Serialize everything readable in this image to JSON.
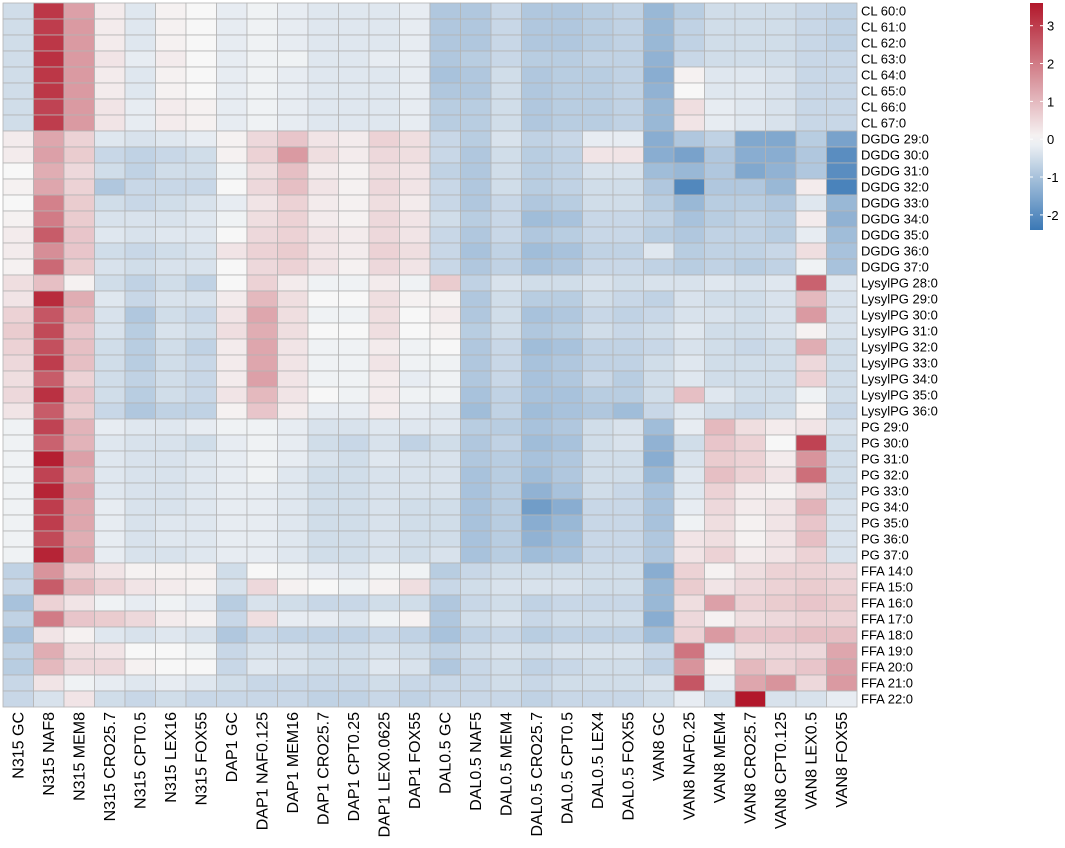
{
  "chart_data": {
    "type": "heatmap",
    "columns": [
      "N315 GC",
      "N315 NAF8",
      "N315 MEM8",
      "N315 CRO25.7",
      "N315 CPT0.5",
      "N315 LEX16",
      "N315 FOX55",
      "DAP1 GC",
      "DAP1 NAF0.125",
      "DAP1 MEM16",
      "DAP1 CRO25.7",
      "DAP1 CPT0.25",
      "DAP1 LEX0.0625",
      "DAP1 FOX55",
      "DAL0.5 GC",
      "DAL0.5 NAF5",
      "DAL0.5 MEM4",
      "DAL0.5 CRO25.7",
      "DAL0.5 CPT0.5",
      "DAL0.5 LEX4",
      "DAL0.5 FOX55",
      "VAN8 GC",
      "VAN8 NAF0.25",
      "VAN8 MEM4",
      "VAN8 CRO25.7",
      "VAN8 CPT0.125",
      "VAN8 LEX0.5",
      "VAN8 FOX55"
    ],
    "rows": [
      "CL 60:0",
      "CL 61:0",
      "CL 62:0",
      "CL 63:0",
      "CL 64:0",
      "CL 65:0",
      "CL 66:0",
      "CL 67:0",
      "DGDG 29:0",
      "DGDG 30:0",
      "DGDG 31:0",
      "DGDG 32:0",
      "DGDG 33:0",
      "DGDG 34:0",
      "DGDG 35:0",
      "DGDG 36:0",
      "DGDG 37:0",
      "LysylPG 28:0",
      "LysylPG 29:0",
      "LysylPG 30:0",
      "LysylPG 31:0",
      "LysylPG 32:0",
      "LysylPG 33:0",
      "LysylPG 34:0",
      "LysylPG 35:0",
      "LysylPG 36:0",
      "PG 29:0",
      "PG 30:0",
      "PG 31:0",
      "PG 32:0",
      "PG 33:0",
      "PG 34:0",
      "PG 35:0",
      "PG 36:0",
      "PG 37:0",
      "FFA 14:0",
      "FFA 15:0",
      "FFA 16:0",
      "FFA 17:0",
      "FFA 18:0",
      "FFA 19:0",
      "FFA 20:0",
      "FFA 21:0",
      "FFA 22:0"
    ],
    "values": [
      [
        -0.5,
        3.1,
        1.4,
        0.2,
        -0.3,
        0.1,
        0.0,
        -0.2,
        -0.1,
        -0.2,
        -0.3,
        -0.3,
        -0.3,
        -0.2,
        -0.9,
        -0.9,
        -0.6,
        -0.9,
        -0.9,
        -0.8,
        -0.7,
        -1.2,
        -0.8,
        -0.5,
        -0.5,
        -0.5,
        -0.6,
        -0.7
      ],
      [
        -0.5,
        3.0,
        1.5,
        0.2,
        -0.3,
        0.1,
        0.0,
        -0.2,
        -0.1,
        -0.2,
        -0.3,
        -0.3,
        -0.3,
        -0.2,
        -0.9,
        -0.9,
        -0.6,
        -0.9,
        -0.9,
        -0.8,
        -0.7,
        -1.2,
        -0.7,
        -0.5,
        -0.5,
        -0.5,
        -0.6,
        -0.7
      ],
      [
        -0.5,
        3.1,
        1.5,
        0.2,
        -0.3,
        0.1,
        0.0,
        -0.2,
        -0.1,
        -0.2,
        -0.3,
        -0.3,
        -0.3,
        -0.2,
        -0.9,
        -0.9,
        -0.6,
        -0.9,
        -0.9,
        -0.8,
        -0.7,
        -1.2,
        -0.7,
        -0.5,
        -0.5,
        -0.5,
        -0.6,
        -0.7
      ],
      [
        -0.5,
        3.2,
        1.5,
        0.3,
        -0.2,
        0.2,
        0.0,
        -0.2,
        -0.1,
        -0.1,
        -0.3,
        -0.3,
        -0.2,
        -0.2,
        -0.9,
        -0.8,
        -0.6,
        -0.8,
        -0.8,
        -0.7,
        -0.7,
        -1.3,
        -0.6,
        -0.5,
        -0.5,
        -0.5,
        -0.6,
        -0.6
      ],
      [
        -0.5,
        3.1,
        1.5,
        0.2,
        -0.3,
        0.1,
        0.0,
        -0.2,
        -0.1,
        -0.2,
        -0.3,
        -0.3,
        -0.3,
        -0.2,
        -1.0,
        -0.9,
        -0.5,
        -0.9,
        -0.8,
        -0.8,
        -0.7,
        -1.4,
        0.1,
        -0.3,
        -0.3,
        -0.4,
        -0.6,
        -0.6
      ],
      [
        -0.5,
        3.1,
        1.5,
        0.2,
        -0.3,
        0.1,
        0.0,
        -0.2,
        -0.1,
        -0.2,
        -0.3,
        -0.3,
        -0.3,
        -0.2,
        -0.9,
        -0.9,
        -0.5,
        -0.9,
        -0.8,
        -0.8,
        -0.7,
        -1.3,
        0.0,
        -0.3,
        -0.3,
        -0.4,
        -0.6,
        -0.6
      ],
      [
        -0.5,
        2.9,
        1.5,
        0.3,
        -0.2,
        0.2,
        0.1,
        -0.2,
        -0.1,
        -0.2,
        -0.3,
        -0.3,
        -0.3,
        -0.2,
        -0.8,
        -0.8,
        -0.5,
        -0.9,
        -0.8,
        -0.8,
        -0.7,
        -1.2,
        0.4,
        -0.2,
        -0.3,
        -0.4,
        -0.6,
        -0.6
      ],
      [
        -0.5,
        3.0,
        1.5,
        0.3,
        -0.2,
        0.2,
        0.1,
        -0.2,
        -0.1,
        -0.2,
        -0.3,
        -0.3,
        -0.3,
        -0.2,
        -0.8,
        -0.8,
        -0.5,
        -0.9,
        -0.8,
        -0.8,
        -0.7,
        -1.2,
        0.3,
        -0.2,
        -0.3,
        -0.4,
        -0.6,
        -0.6
      ],
      [
        0.2,
        1.3,
        0.6,
        -0.3,
        -0.4,
        -0.3,
        -0.2,
        0.1,
        0.5,
        0.8,
        0.3,
        0.2,
        0.6,
        0.4,
        -0.6,
        -0.8,
        -0.4,
        -0.7,
        -0.6,
        -0.2,
        -0.2,
        -1.4,
        -0.9,
        -0.7,
        -1.5,
        -1.5,
        -0.8,
        -1.6
      ],
      [
        0.2,
        1.4,
        0.7,
        -0.6,
        -0.7,
        -0.6,
        -0.5,
        0.1,
        0.6,
        1.5,
        0.4,
        0.2,
        0.5,
        0.4,
        -0.6,
        -0.9,
        -0.5,
        -0.8,
        -0.7,
        0.3,
        0.3,
        -1.4,
        -1.6,
        -0.9,
        -1.4,
        -1.4,
        -0.9,
        -2.0
      ],
      [
        0.0,
        1.2,
        0.5,
        -0.5,
        -0.7,
        -0.5,
        -0.5,
        -0.1,
        0.4,
        0.9,
        0.2,
        0.1,
        0.4,
        0.3,
        -0.7,
        -0.9,
        -0.5,
        -0.8,
        -0.7,
        -0.4,
        -0.4,
        -1.1,
        -1.2,
        -0.9,
        -1.5,
        -1.3,
        -0.9,
        -2.0
      ],
      [
        0.1,
        1.3,
        0.6,
        -0.9,
        -0.6,
        -0.6,
        -0.6,
        0.0,
        0.5,
        0.9,
        0.3,
        0.1,
        0.5,
        0.3,
        -0.6,
        -0.9,
        -0.5,
        -0.8,
        -0.7,
        -0.5,
        -0.5,
        -0.9,
        -2.1,
        -0.9,
        -0.9,
        -1.2,
        0.2,
        -2.2
      ],
      [
        0.0,
        1.9,
        0.7,
        -0.5,
        -0.6,
        -0.5,
        -0.4,
        -0.2,
        0.3,
        0.6,
        0.2,
        0.1,
        0.4,
        0.2,
        -0.6,
        -0.9,
        -0.6,
        -0.9,
        -0.8,
        -0.5,
        -0.5,
        -0.8,
        -1.2,
        -0.8,
        -0.8,
        -0.9,
        -0.3,
        -1.2
      ],
      [
        0.1,
        2.0,
        0.7,
        -0.4,
        -0.4,
        -0.4,
        -0.3,
        -0.1,
        0.4,
        0.6,
        0.2,
        0.1,
        0.5,
        0.3,
        -0.5,
        -0.8,
        -0.6,
        -1.1,
        -1.0,
        -0.6,
        -0.6,
        -0.7,
        -1.0,
        -0.8,
        -0.7,
        -0.8,
        0.2,
        -1.3
      ],
      [
        0.2,
        2.5,
        0.8,
        -0.3,
        -0.4,
        -0.3,
        -0.3,
        0.0,
        0.5,
        0.6,
        0.3,
        0.2,
        0.5,
        0.3,
        -0.6,
        -0.9,
        -0.6,
        -0.9,
        -0.8,
        -0.6,
        -0.6,
        -0.8,
        -0.9,
        -0.7,
        -0.7,
        -0.8,
        -0.2,
        -1.1
      ],
      [
        0.2,
        1.7,
        0.8,
        -0.5,
        -0.6,
        -0.5,
        -0.4,
        0.3,
        0.6,
        0.7,
        0.3,
        0.2,
        0.6,
        0.4,
        -0.6,
        -1.0,
        -0.7,
        -1.1,
        -1.0,
        -0.7,
        -0.7,
        -0.3,
        -0.8,
        -0.7,
        -0.7,
        -0.6,
        0.4,
        -1.0
      ],
      [
        0.1,
        2.3,
        0.7,
        -0.4,
        -0.5,
        -0.4,
        -0.4,
        0.0,
        0.5,
        0.6,
        0.3,
        0.1,
        0.5,
        0.3,
        -0.6,
        -0.9,
        -0.7,
        -1.0,
        -0.9,
        -0.6,
        -0.6,
        -0.7,
        -0.8,
        -0.7,
        -0.8,
        -0.7,
        -0.1,
        -1.0
      ],
      [
        0.4,
        0.9,
        0.1,
        -0.5,
        -0.7,
        -0.5,
        -0.7,
        0.0,
        0.6,
        0.2,
        -0.1,
        -0.1,
        0.2,
        -0.1,
        0.7,
        -0.7,
        -0.4,
        -0.5,
        -0.5,
        -0.4,
        -0.5,
        -0.4,
        -0.4,
        -0.3,
        -0.4,
        -0.3,
        2.4,
        -0.3
      ],
      [
        0.3,
        3.3,
        1.2,
        -0.3,
        -0.6,
        -0.4,
        -0.4,
        0.2,
        1.0,
        0.4,
        0.0,
        0.0,
        0.4,
        0.1,
        0.1,
        -0.9,
        -0.5,
        -0.8,
        -0.8,
        -0.5,
        -0.6,
        -0.7,
        -0.4,
        -0.5,
        -0.5,
        -0.4,
        1.0,
        -0.4
      ],
      [
        0.6,
        2.6,
        1.0,
        -0.4,
        -0.9,
        -0.5,
        -0.6,
        0.3,
        1.3,
        0.4,
        -0.1,
        -0.1,
        0.4,
        0.0,
        0.2,
        -0.9,
        -0.5,
        -1.0,
        -0.9,
        -0.6,
        -0.7,
        -0.6,
        -0.4,
        -0.4,
        -0.5,
        -0.4,
        1.5,
        -0.4
      ],
      [
        0.7,
        2.8,
        0.8,
        -0.4,
        -0.8,
        -0.4,
        -0.5,
        0.4,
        1.2,
        0.4,
        0.0,
        0.0,
        0.4,
        0.0,
        0.1,
        -0.8,
        -0.5,
        -0.9,
        -0.8,
        -0.5,
        -0.6,
        -0.5,
        -0.3,
        -0.5,
        -0.5,
        -0.4,
        0.1,
        -0.4
      ],
      [
        0.6,
        2.7,
        0.9,
        -0.5,
        -0.8,
        -0.5,
        -0.7,
        0.2,
        1.3,
        0.3,
        -0.1,
        -0.1,
        0.2,
        -0.1,
        0.0,
        -0.9,
        -0.6,
        -1.1,
        -1.0,
        -0.7,
        -0.7,
        -0.6,
        -0.4,
        -0.5,
        -0.6,
        -0.5,
        1.2,
        -0.5
      ],
      [
        0.5,
        3.0,
        0.9,
        -0.5,
        -0.8,
        -0.5,
        -0.6,
        0.2,
        1.3,
        0.3,
        -0.1,
        -0.1,
        0.3,
        -0.1,
        -0.1,
        -0.9,
        -0.6,
        -1.0,
        -0.9,
        -0.7,
        -0.7,
        -0.5,
        -0.3,
        -0.5,
        -0.5,
        -0.5,
        0.5,
        -0.5
      ],
      [
        0.4,
        2.5,
        0.6,
        -0.5,
        -0.7,
        -0.5,
        -0.6,
        0.2,
        1.4,
        0.3,
        -0.1,
        -0.1,
        0.2,
        -0.2,
        -0.1,
        -0.9,
        -0.6,
        -1.0,
        -0.9,
        -0.6,
        -0.8,
        -0.5,
        -0.3,
        -0.5,
        -0.5,
        -0.5,
        0.6,
        -0.5
      ],
      [
        0.5,
        3.2,
        0.8,
        -0.5,
        -0.8,
        -0.5,
        -0.6,
        0.3,
        1.0,
        0.3,
        0.0,
        -0.1,
        0.2,
        -0.1,
        -0.1,
        -1.0,
        -0.7,
        -1.0,
        -1.0,
        -0.8,
        -0.8,
        -0.5,
        0.9,
        -0.3,
        -0.5,
        -0.5,
        -0.1,
        -0.5
      ],
      [
        0.3,
        2.5,
        0.7,
        -0.6,
        -0.9,
        -0.7,
        -0.7,
        0.1,
        0.8,
        0.2,
        -0.2,
        -0.2,
        0.2,
        -0.2,
        -0.3,
        -1.1,
        -0.7,
        -1.1,
        -1.0,
        -0.9,
        -1.1,
        -0.6,
        -0.3,
        -0.5,
        -0.6,
        -0.5,
        0.1,
        -0.6
      ],
      [
        -0.1,
        2.9,
        1.1,
        -0.2,
        -0.3,
        -0.3,
        -0.2,
        -0.1,
        -0.1,
        -0.2,
        -0.4,
        -0.4,
        -0.3,
        -0.3,
        -0.3,
        -0.8,
        -0.8,
        -1.0,
        -0.9,
        -0.5,
        -0.4,
        -1.1,
        -0.2,
        1.0,
        0.4,
        0.2,
        0.3,
        -0.4
      ],
      [
        -0.1,
        2.4,
        1.1,
        -0.3,
        -0.4,
        -0.4,
        -0.5,
        -0.2,
        -0.1,
        -0.2,
        -0.5,
        -0.6,
        -0.4,
        -0.7,
        -0.5,
        -0.9,
        -0.7,
        -1.1,
        -1.0,
        -0.5,
        -0.4,
        -1.3,
        -0.5,
        0.8,
        0.6,
        0.0,
        2.9,
        -0.5
      ],
      [
        -0.1,
        3.5,
        1.4,
        -0.3,
        -0.4,
        -0.4,
        -0.3,
        -0.2,
        -0.1,
        -0.2,
        -0.4,
        -0.5,
        -0.3,
        -0.4,
        -0.4,
        -0.9,
        -0.8,
        -1.0,
        -0.9,
        -0.5,
        -0.5,
        -1.4,
        -0.4,
        0.7,
        0.6,
        0.2,
        1.6,
        -0.5
      ],
      [
        -0.1,
        2.9,
        1.2,
        -0.3,
        -0.4,
        -0.4,
        -0.3,
        -0.2,
        -0.1,
        -0.3,
        -0.5,
        -0.5,
        -0.4,
        -0.4,
        -0.4,
        -1.0,
        -0.8,
        -1.1,
        -0.9,
        -0.5,
        -0.5,
        -1.2,
        -0.3,
        0.9,
        0.6,
        0.3,
        2.2,
        -0.5
      ],
      [
        -0.1,
        3.4,
        1.4,
        -0.3,
        -0.4,
        -0.4,
        -0.3,
        -0.2,
        -0.2,
        -0.3,
        -0.5,
        -0.5,
        -0.4,
        -0.4,
        -0.4,
        -1.0,
        -0.8,
        -1.3,
        -1.0,
        -0.5,
        -0.6,
        -1.0,
        -0.3,
        0.6,
        0.2,
        0.1,
        0.5,
        -0.5
      ],
      [
        -0.1,
        3.0,
        1.3,
        -0.2,
        -0.4,
        -0.4,
        -0.3,
        -0.2,
        -0.2,
        -0.3,
        -0.5,
        -0.5,
        -0.4,
        -0.5,
        -0.5,
        -1.0,
        -0.8,
        -1.7,
        -1.4,
        -0.6,
        -0.6,
        -1.0,
        -0.2,
        0.5,
        0.2,
        0.3,
        1.1,
        -0.4
      ],
      [
        -0.1,
        3.0,
        1.3,
        -0.2,
        -0.4,
        -0.3,
        -0.3,
        -0.2,
        -0.2,
        -0.3,
        -0.5,
        -0.5,
        -0.4,
        -0.5,
        -0.5,
        -1.0,
        -0.8,
        -1.4,
        -1.2,
        -0.6,
        -0.6,
        -1.0,
        -0.1,
        0.4,
        0.1,
        0.3,
        0.8,
        -0.4
      ],
      [
        -0.1,
        2.8,
        1.2,
        -0.2,
        -0.4,
        -0.3,
        -0.3,
        -0.2,
        -0.2,
        -0.3,
        -0.5,
        -0.5,
        -0.4,
        -0.5,
        -0.5,
        -1.0,
        -0.8,
        -1.3,
        -1.1,
        -0.6,
        -0.6,
        -0.9,
        0.3,
        0.4,
        0.1,
        0.3,
        0.9,
        -0.4
      ],
      [
        -0.1,
        3.4,
        1.3,
        -0.2,
        -0.4,
        -0.4,
        -0.3,
        -0.2,
        -0.2,
        -0.3,
        -0.5,
        -0.5,
        -0.4,
        -0.5,
        -0.4,
        -1.0,
        -0.8,
        -1.1,
        -1.0,
        -0.6,
        -0.6,
        -0.9,
        0.3,
        0.6,
        0.2,
        0.3,
        0.6,
        -0.4
      ],
      [
        -0.7,
        1.6,
        0.6,
        0.3,
        0.1,
        0.1,
        0.1,
        -0.5,
        0.0,
        -0.1,
        -0.2,
        -0.3,
        -0.1,
        -0.1,
        -0.8,
        -0.6,
        -0.5,
        -0.5,
        -0.5,
        -0.5,
        -0.5,
        -1.4,
        0.6,
        0.1,
        0.4,
        0.6,
        0.6,
        0.5
      ],
      [
        -0.6,
        2.5,
        1.0,
        0.6,
        0.3,
        0.2,
        0.1,
        -0.4,
        0.5,
        0.1,
        0.0,
        -0.1,
        0.1,
        0.4,
        -0.6,
        -0.5,
        -0.4,
        -0.4,
        -0.4,
        -0.5,
        -0.5,
        -1.2,
        0.7,
        0.3,
        0.5,
        0.6,
        0.7,
        0.6
      ],
      [
        -1.0,
        0.6,
        0.3,
        -0.1,
        -0.2,
        -0.1,
        -0.2,
        -0.8,
        -0.4,
        -0.5,
        -0.6,
        -0.6,
        -0.5,
        -0.5,
        -0.9,
        -0.6,
        -0.5,
        -0.7,
        -0.6,
        -0.6,
        -0.6,
        -1.2,
        0.4,
        1.4,
        0.6,
        0.7,
        0.8,
        0.7
      ],
      [
        -0.7,
        2.0,
        0.8,
        0.7,
        0.5,
        0.2,
        0.1,
        -0.6,
        0.4,
        -0.2,
        -0.2,
        -0.3,
        -0.1,
        0.1,
        -0.9,
        -0.5,
        -0.4,
        -0.6,
        -0.5,
        -0.5,
        -0.5,
        -1.4,
        0.5,
        0.1,
        0.4,
        0.5,
        0.6,
        0.6
      ],
      [
        -1.0,
        0.3,
        0.1,
        -0.3,
        -0.4,
        -0.3,
        -0.4,
        -0.9,
        -0.6,
        -0.7,
        -0.7,
        -0.7,
        -0.6,
        -0.7,
        -1.0,
        -0.7,
        -0.6,
        -0.8,
        -0.7,
        -0.7,
        -0.7,
        -1.1,
        0.6,
        1.5,
        0.8,
        0.8,
        0.9,
        0.9
      ],
      [
        -0.7,
        1.2,
        0.4,
        0.3,
        0.0,
        0.0,
        -0.1,
        -0.6,
        -0.4,
        -0.4,
        -0.5,
        -0.5,
        -0.4,
        -0.5,
        -0.7,
        -0.5,
        -0.4,
        -0.5,
        -0.4,
        -0.4,
        -0.4,
        -0.6,
        2.1,
        -0.2,
        0.4,
        0.5,
        0.5,
        1.3
      ],
      [
        -0.8,
        1.0,
        0.5,
        0.5,
        0.1,
        0.0,
        0.0,
        -0.6,
        -0.3,
        -0.4,
        -0.5,
        -0.5,
        -0.3,
        -0.4,
        -0.9,
        -0.6,
        -0.5,
        -0.7,
        -0.6,
        -0.5,
        -0.5,
        -0.7,
        1.6,
        0.1,
        1.0,
        0.6,
        0.8,
        1.4
      ],
      [
        -0.6,
        0.3,
        -0.1,
        -0.2,
        -0.3,
        -0.2,
        -0.3,
        -0.5,
        -0.6,
        -0.6,
        -0.6,
        -0.6,
        -0.5,
        -0.6,
        -0.6,
        -0.6,
        -0.5,
        -0.6,
        -0.5,
        -0.5,
        -0.5,
        -0.4,
        2.6,
        -0.2,
        1.3,
        1.6,
        0.5,
        1.5
      ],
      [
        -0.6,
        -0.4,
        0.3,
        -0.5,
        -0.6,
        -0.5,
        -0.6,
        -0.6,
        -0.6,
        -0.6,
        -0.7,
        -0.7,
        -0.6,
        -0.7,
        -0.6,
        -0.6,
        -0.6,
        -0.7,
        -0.6,
        -0.6,
        -0.6,
        -0.5,
        -0.2,
        -0.5,
        3.6,
        -0.4,
        -0.4,
        -0.2
      ]
    ],
    "colorbar": {
      "range": [
        -2.4,
        3.6
      ],
      "ticks": [
        -2,
        -1,
        0,
        1,
        2,
        3
      ],
      "colors": {
        "low": "#3a78b5",
        "mid": "#f7f7f7",
        "high": "#b2182b"
      }
    },
    "grid_color": "#b3b3b3"
  }
}
